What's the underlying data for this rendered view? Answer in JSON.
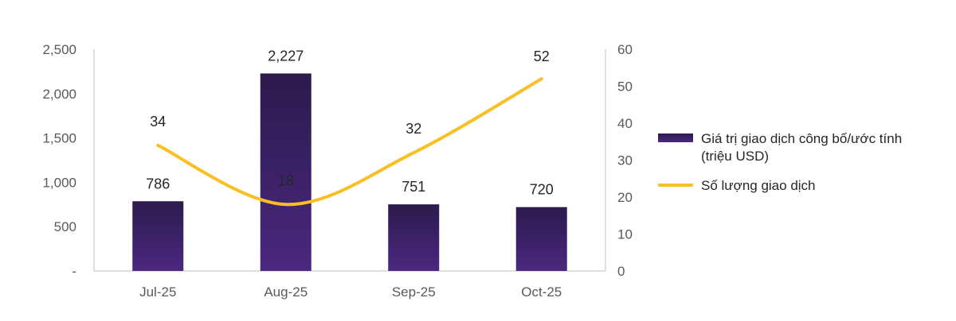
{
  "chart_data": {
    "type": "bar",
    "categories": [
      "Jul-25",
      "Aug-25",
      "Sep-25",
      "Oct-25"
    ],
    "series": [
      {
        "name": "Giá trị giao dịch công bố/ước tính (triệu USD)",
        "legend_lines": [
          "Giá trị giao dịch công bố/ước tính",
          "(triệu USD)"
        ],
        "type": "bar",
        "axis": "left",
        "values": [
          786,
          2227,
          751,
          720
        ],
        "labels": [
          "786",
          "2,227",
          "751",
          "720"
        ],
        "color": "#3f2366"
      },
      {
        "name": "Số lượng giao dịch",
        "legend_lines": [
          "Số lượng giao dịch"
        ],
        "type": "line",
        "axis": "right",
        "values": [
          34,
          18,
          32,
          52
        ],
        "labels": [
          "34",
          "18",
          "32",
          "52"
        ],
        "color": "#fbbf24"
      }
    ],
    "y_left": {
      "min": 0,
      "max": 2500,
      "ticks": [
        0,
        500,
        1000,
        1500,
        2000,
        2500
      ],
      "tick_labels": [
        "-",
        "500",
        "1,000",
        "1,500",
        "2,000",
        "2,500"
      ]
    },
    "y_right": {
      "min": 0,
      "max": 60,
      "ticks": [
        0,
        10,
        20,
        30,
        40,
        50,
        60
      ],
      "tick_labels": [
        "0",
        "10",
        "20",
        "30",
        "40",
        "50",
        "60"
      ]
    },
    "grid": false,
    "legend_position": "right"
  }
}
